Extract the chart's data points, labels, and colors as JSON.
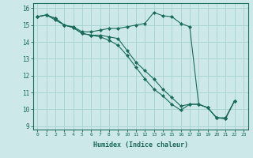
{
  "xlabel": "Humidex (Indice chaleur)",
  "ylabel": "",
  "background_color": "#cce8e8",
  "grid_color": "#aad4d4",
  "line_color": "#1a6b5a",
  "xlim": [
    -0.5,
    23.5
  ],
  "ylim": [
    8.8,
    16.3
  ],
  "xticks": [
    0,
    1,
    2,
    3,
    4,
    5,
    6,
    7,
    8,
    9,
    10,
    11,
    12,
    13,
    14,
    15,
    16,
    17,
    18,
    19,
    20,
    21,
    22,
    23
  ],
  "yticks": [
    9,
    10,
    11,
    12,
    13,
    14,
    15,
    16
  ],
  "lines": [
    {
      "x": [
        0,
        1,
        2,
        3,
        4,
        5,
        6,
        7,
        8,
        9,
        10,
        11,
        12,
        13,
        14,
        15,
        16,
        17,
        18,
        19,
        20,
        21,
        22
      ],
      "y": [
        15.5,
        15.6,
        15.4,
        15.0,
        14.9,
        14.6,
        14.6,
        14.7,
        14.8,
        14.8,
        14.9,
        15.0,
        15.1,
        15.75,
        15.55,
        15.5,
        15.1,
        14.9,
        10.3,
        10.1,
        9.5,
        9.5,
        10.5
      ]
    },
    {
      "x": [
        0,
        1,
        2,
        3,
        4,
        5,
        6,
        7,
        8,
        9,
        10,
        11,
        12,
        13,
        14,
        15,
        16,
        17,
        18,
        19,
        20,
        21,
        22
      ],
      "y": [
        15.5,
        15.6,
        15.4,
        15.0,
        14.85,
        14.5,
        14.4,
        14.4,
        14.3,
        14.2,
        13.5,
        12.8,
        12.3,
        11.8,
        11.2,
        10.7,
        10.2,
        10.3,
        10.3,
        10.1,
        9.5,
        9.45,
        10.5
      ]
    },
    {
      "x": [
        0,
        1,
        2,
        3,
        4,
        5,
        6,
        7,
        8,
        9,
        10,
        11,
        12,
        13,
        14,
        15,
        16,
        17,
        18,
        19,
        20,
        21,
        22
      ],
      "y": [
        15.5,
        15.6,
        15.3,
        15.0,
        14.85,
        14.5,
        14.4,
        14.3,
        14.1,
        13.8,
        13.2,
        12.5,
        11.8,
        11.2,
        10.8,
        10.3,
        9.95,
        10.3,
        10.3,
        10.1,
        9.5,
        9.45,
        10.5
      ]
    }
  ]
}
